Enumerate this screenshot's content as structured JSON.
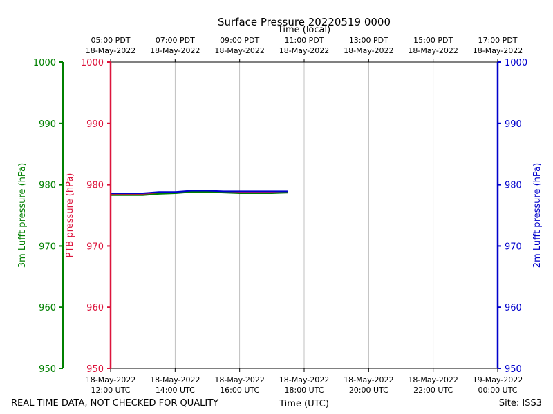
{
  "chart_data": {
    "type": "line",
    "title": "Surface Pressure 20220519 0000",
    "top_axis_label": "Time (local)",
    "xlabel": "Time (UTC)",
    "footer_left": "REAL TIME DATA, NOT CHECKED FOR QUALITY",
    "footer_right": "Site: ISS3",
    "x_range_hours": [
      0,
      12
    ],
    "ylim": [
      950,
      1000
    ],
    "y_ticks": [
      950,
      960,
      970,
      980,
      990,
      1000
    ],
    "x_ticks": [
      {
        "hour": 0,
        "utc_date": "18-May-2022",
        "utc_time": "12:00 UTC",
        "local_time": "05:00 PDT",
        "local_date": "18-May-2022"
      },
      {
        "hour": 2,
        "utc_date": "18-May-2022",
        "utc_time": "14:00 UTC",
        "local_time": "07:00 PDT",
        "local_date": "18-May-2022"
      },
      {
        "hour": 4,
        "utc_date": "18-May-2022",
        "utc_time": "16:00 UTC",
        "local_time": "09:00 PDT",
        "local_date": "18-May-2022"
      },
      {
        "hour": 6,
        "utc_date": "18-May-2022",
        "utc_time": "18:00 UTC",
        "local_time": "11:00 PDT",
        "local_date": "18-May-2022"
      },
      {
        "hour": 8,
        "utc_date": "18-May-2022",
        "utc_time": "20:00 UTC",
        "local_time": "13:00 PDT",
        "local_date": "18-May-2022"
      },
      {
        "hour": 10,
        "utc_date": "18-May-2022",
        "utc_time": "22:00 UTC",
        "local_time": "15:00 PDT",
        "local_date": "18-May-2022"
      },
      {
        "hour": 12,
        "utc_date": "19-May-2022",
        "utc_time": "00:00 UTC",
        "local_time": "17:00 PDT",
        "local_date": "18-May-2022"
      }
    ],
    "axes": [
      {
        "id": "lufft3m",
        "label": "3m Lufft pressure (hPa)",
        "color": "#008000"
      },
      {
        "id": "ptb",
        "label": "PTB pressure (hPa)",
        "color": "#dc143c"
      },
      {
        "id": "lufft2m",
        "label": "2m Lufft pressure (hPa)",
        "color": "#0000cc"
      }
    ],
    "series": [
      {
        "name": "PTB pressure",
        "color": "#dc143c",
        "x": [
          0,
          0.5,
          1,
          1.5,
          2,
          2.5,
          3,
          3.5,
          4,
          4.5,
          5,
          5.5
        ],
        "y": [
          978.4,
          978.4,
          978.4,
          978.6,
          978.7,
          978.9,
          978.9,
          978.8,
          978.7,
          978.7,
          978.7,
          978.7
        ]
      },
      {
        "name": "3m Lufft pressure",
        "color": "#008000",
        "x": [
          0,
          0.5,
          1,
          1.5,
          2,
          2.5,
          3,
          3.5,
          4,
          4.5,
          5,
          5.5
        ],
        "y": [
          978.3,
          978.3,
          978.3,
          978.5,
          978.6,
          978.8,
          978.8,
          978.7,
          978.6,
          978.6,
          978.6,
          978.7
        ]
      },
      {
        "name": "2m Lufft pressure",
        "color": "#0000cc",
        "x": [
          0,
          0.5,
          1,
          1.5,
          2,
          2.5,
          3,
          3.5,
          4,
          4.5,
          5,
          5.5
        ],
        "y": [
          978.6,
          978.6,
          978.6,
          978.8,
          978.8,
          979.0,
          979.0,
          978.9,
          978.9,
          978.9,
          978.9,
          978.9
        ]
      }
    ]
  }
}
